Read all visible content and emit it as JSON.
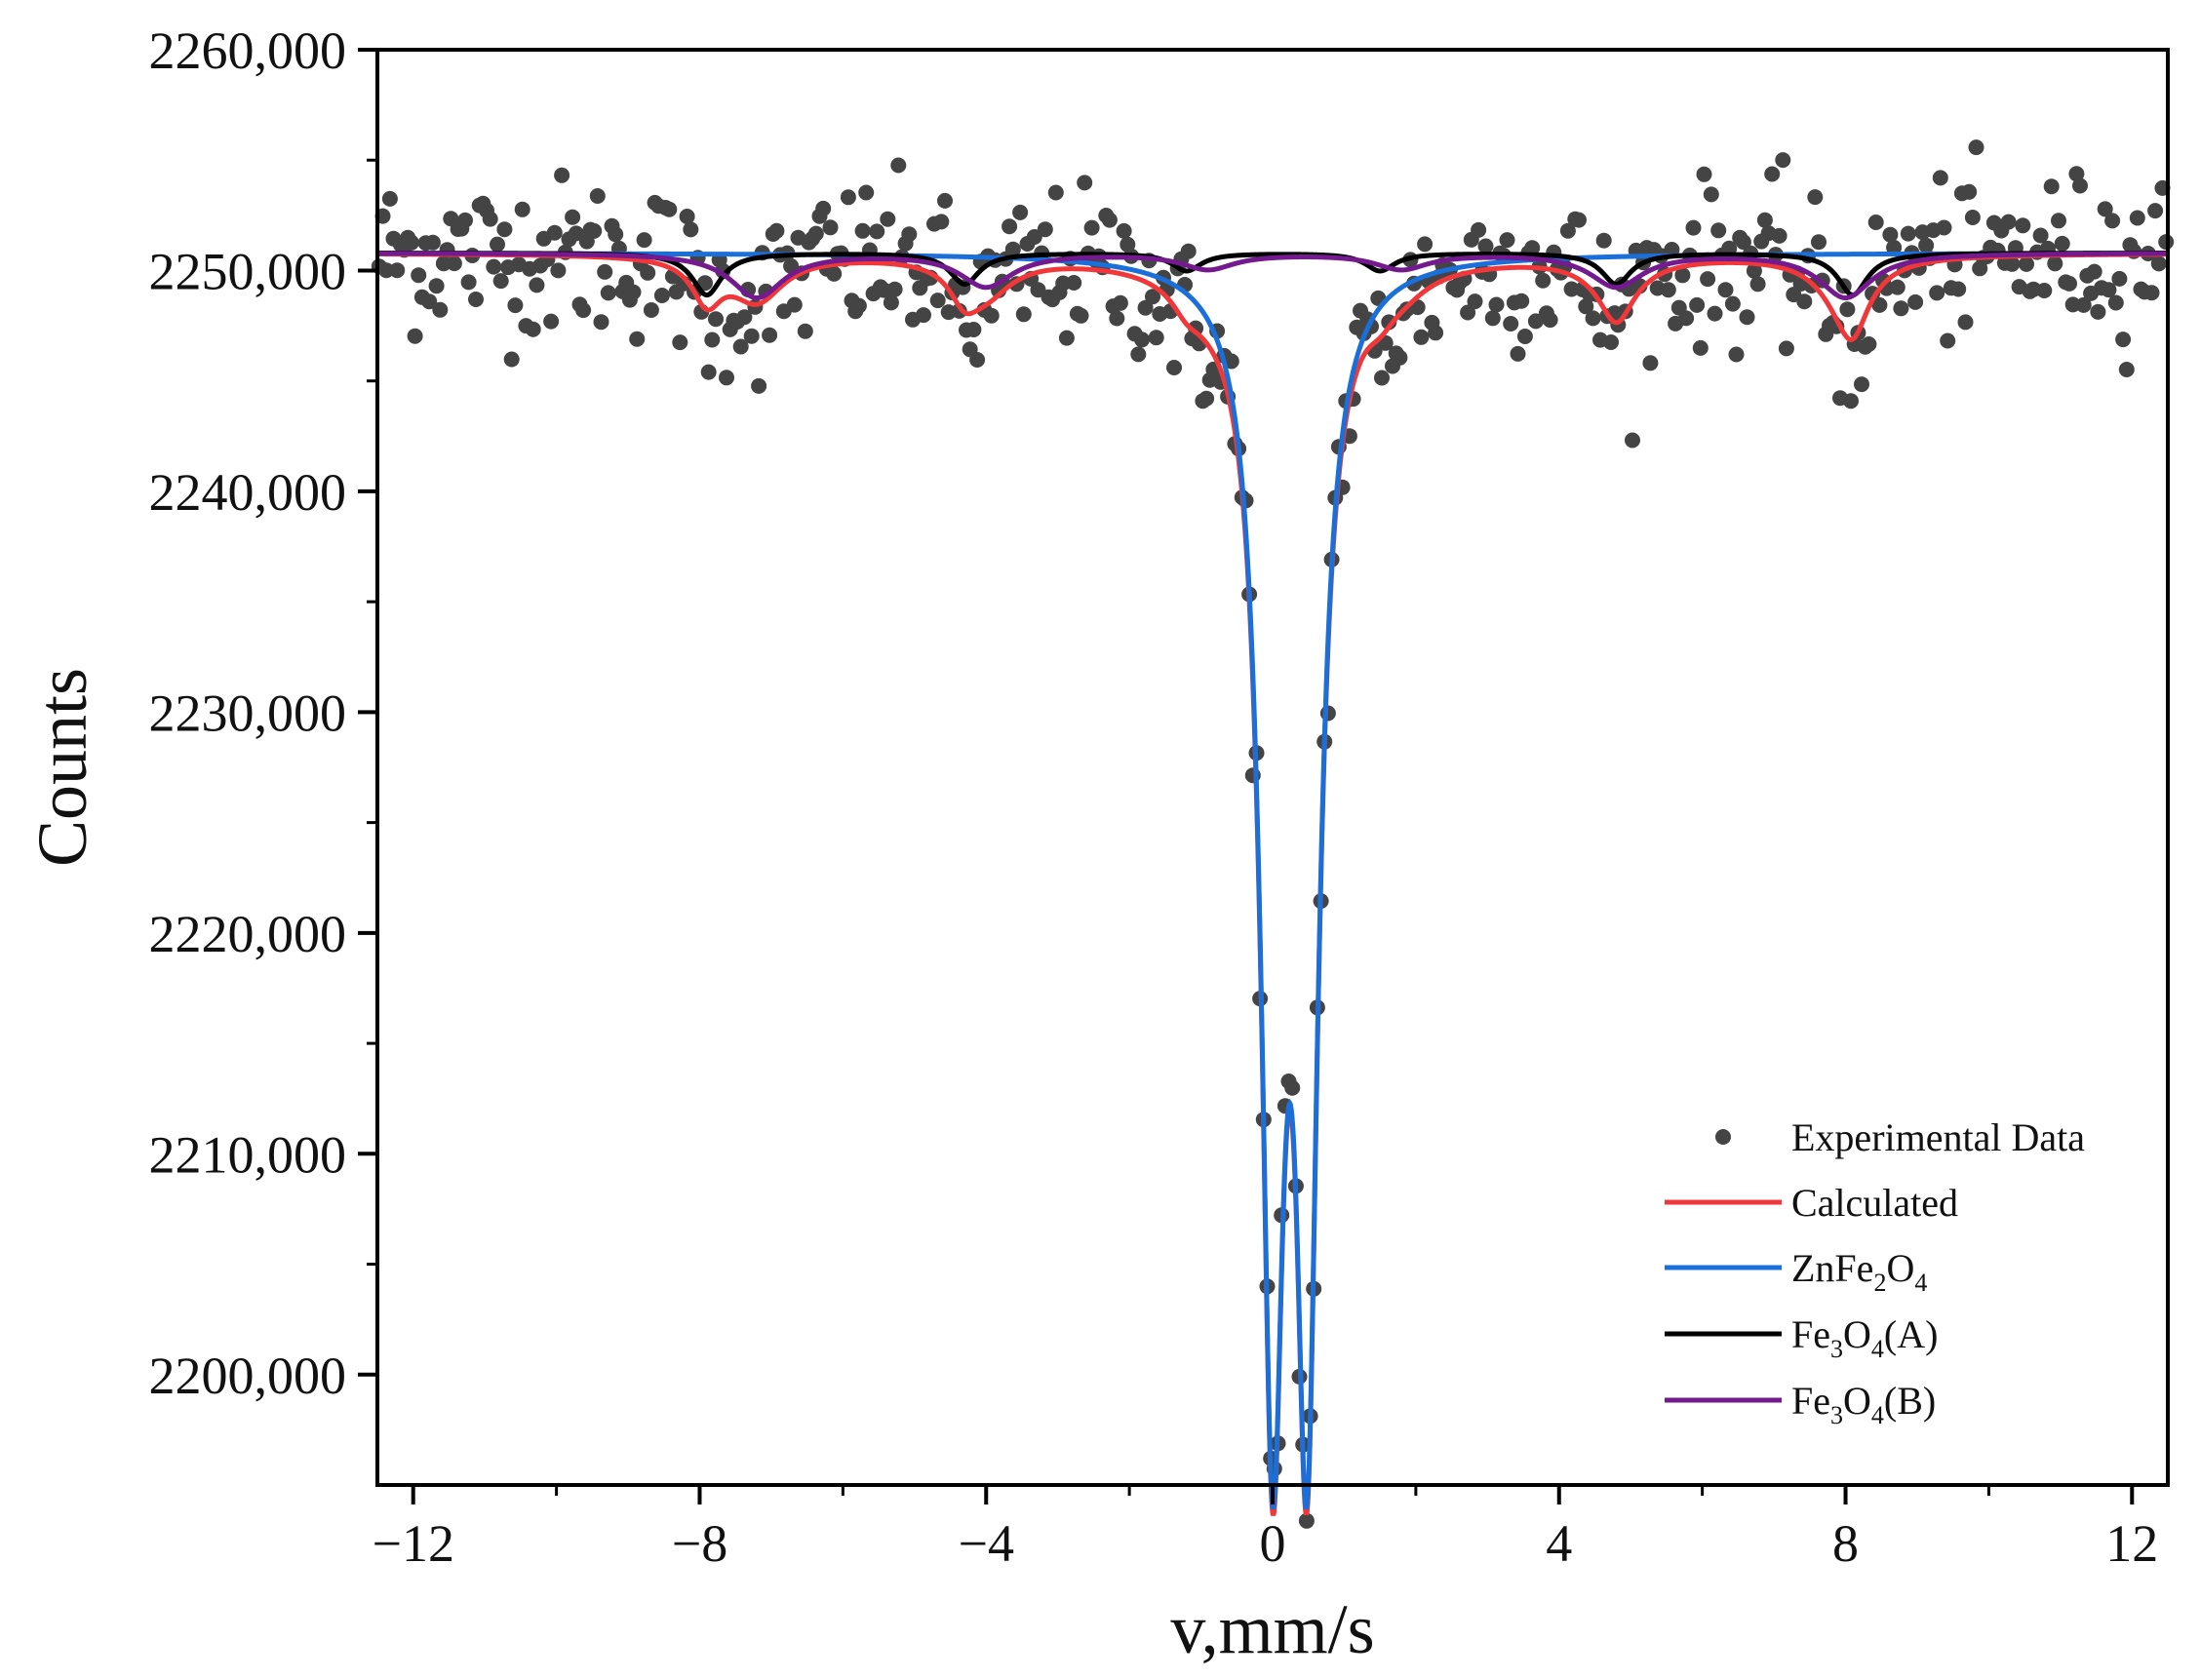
{
  "chart_data": {
    "type": "scatter",
    "title": "",
    "xlabel": "v,mm/s",
    "ylabel": "Counts",
    "xlim": [
      -12.5,
      12.5
    ],
    "ylim": [
      2195000,
      2260000
    ],
    "x_ticks": [
      -12,
      -8,
      -4,
      0,
      4,
      8,
      12
    ],
    "x_tick_labels": [
      "−12",
      "−8",
      "−4",
      "0",
      "4",
      "8",
      "12"
    ],
    "y_ticks": [
      2200000,
      2210000,
      2220000,
      2230000,
      2240000,
      2250000,
      2260000
    ],
    "y_tick_labels": [
      "2200,000",
      "2210,000",
      "2220,000",
      "2230,000",
      "2240,000",
      "2250,000",
      "2260,000"
    ],
    "legend_position": "bottom-right",
    "baseline": 2250800,
    "experimental_noise": 1800,
    "experimental_points": 500,
    "series": [
      {
        "name": "Experimental Data",
        "kind": "points",
        "color": "#444444",
        "note": "noisy points scattered around the Calculated curve"
      },
      {
        "name": "Calculated",
        "kind": "line",
        "color": "#f0383b",
        "components": [
          "ZnFe2O4",
          "Fe3O4(A)",
          "Fe3O4(B)"
        ]
      },
      {
        "name": "ZnFe2O4",
        "kind": "line",
        "color": "#1a6fd9",
        "peaks": [
          {
            "x0": 0.0,
            "depth": 50000,
            "hwhm": 0.19
          },
          {
            "x0": 0.48,
            "depth": 50000,
            "hwhm": 0.19
          }
        ]
      },
      {
        "name": "Fe3O4(A)",
        "kind": "line",
        "color": "#000000",
        "peaks": [
          {
            "x0": -7.9,
            "depth": 1900,
            "hwhm": 0.25
          },
          {
            "x0": -4.3,
            "depth": 1400,
            "hwhm": 0.25
          },
          {
            "x0": -1.2,
            "depth": 800,
            "hwhm": 0.25
          },
          {
            "x0": 1.5,
            "depth": 800,
            "hwhm": 0.25
          },
          {
            "x0": 4.8,
            "depth": 1400,
            "hwhm": 0.25
          },
          {
            "x0": 8.1,
            "depth": 1900,
            "hwhm": 0.25
          }
        ]
      },
      {
        "name": "Fe3O4(B)",
        "kind": "line",
        "color": "#731a8f",
        "peaks": [
          {
            "x0": -7.2,
            "depth": 2000,
            "hwhm": 0.45
          },
          {
            "x0": -4.0,
            "depth": 1500,
            "hwhm": 0.45
          },
          {
            "x0": -0.9,
            "depth": 700,
            "hwhm": 0.45
          },
          {
            "x0": 1.8,
            "depth": 700,
            "hwhm": 0.45
          },
          {
            "x0": 4.8,
            "depth": 1500,
            "hwhm": 0.45
          },
          {
            "x0": 8.0,
            "depth": 2000,
            "hwhm": 0.45
          }
        ]
      }
    ]
  },
  "legend": {
    "experimental": "Experimental Data",
    "calculated": "Calculated",
    "znfe2o4": {
      "a": "ZnFe",
      "b": "2",
      "c": "O",
      "d": "4"
    },
    "fe3o4_a": {
      "a": "Fe",
      "b": "3",
      "c": "O",
      "d": "4",
      "e": "(A)"
    },
    "fe3o4_b": {
      "a": "Fe",
      "b": "3",
      "c": "O",
      "d": "4",
      "e": "(B)"
    }
  }
}
